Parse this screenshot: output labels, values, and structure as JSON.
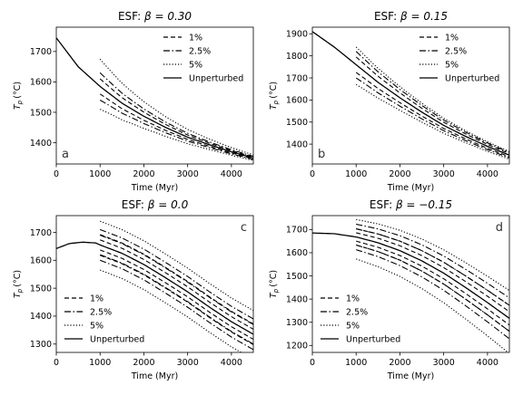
{
  "figure": {
    "legend_labels": [
      "1%",
      "2.5%",
      "5%",
      "Unperturbed"
    ],
    "xlabel": "Time (Myr)",
    "ylabel_main": "T",
    "ylabel_sub": "p",
    "ylabel_unit": "(°C)"
  },
  "chart_data": [
    {
      "type": "line",
      "panel_letter": "a",
      "title_prefix": "ESF: ",
      "title_beta": "β = 0.30",
      "xlim": [
        0,
        4500
      ],
      "ylim": [
        1330,
        1780
      ],
      "xticks": [
        0,
        1000,
        2000,
        3000,
        4000
      ],
      "yticks": [
        1400,
        1500,
        1600,
        1700
      ],
      "legend_loc": "upper-right",
      "letter_loc": "lower-left",
      "perturb_time": 1000,
      "base": {
        "x": [
          0,
          500,
          1000,
          1500,
          2000,
          2500,
          3000,
          3500,
          4000,
          4500
        ],
        "y": [
          1745,
          1650,
          1585,
          1530,
          1487,
          1450,
          1418,
          1393,
          1370,
          1350
        ]
      },
      "offsets": {
        "1%": [
          -25,
          0,
          25
        ],
        "2.5%": [
          -45,
          0,
          45
        ],
        "5%": [
          -75,
          0,
          90
        ]
      },
      "decay": 1600
    },
    {
      "type": "line",
      "panel_letter": "b",
      "title_prefix": "ESF: ",
      "title_beta": "β = 0.15",
      "xlim": [
        0,
        4500
      ],
      "ylim": [
        1310,
        1930
      ],
      "xticks": [
        0,
        1000,
        2000,
        3000,
        4000
      ],
      "yticks": [
        1400,
        1500,
        1600,
        1700,
        1800,
        1900
      ],
      "legend_loc": "upper-right",
      "letter_loc": "lower-left",
      "perturb_time": 1000,
      "base": {
        "x": [
          0,
          500,
          1000,
          1500,
          2000,
          2500,
          3000,
          3500,
          4000,
          4500
        ],
        "y": [
          1910,
          1840,
          1760,
          1680,
          1610,
          1545,
          1485,
          1435,
          1390,
          1350
        ]
      },
      "offsets": {
        "1%": [
          -35,
          0,
          35
        ],
        "2.5%": [
          -60,
          0,
          60
        ],
        "5%": [
          -90,
          0,
          80
        ]
      },
      "decay": 2200
    },
    {
      "type": "line",
      "panel_letter": "c",
      "title_prefix": "ESF: ",
      "title_beta": "β = 0.0",
      "xlim": [
        0,
        4500
      ],
      "ylim": [
        1270,
        1760
      ],
      "xticks": [
        0,
        1000,
        2000,
        3000,
        4000
      ],
      "yticks": [
        1300,
        1400,
        1500,
        1600,
        1700
      ],
      "legend_loc": "lower-left",
      "letter_loc": "upper-right",
      "perturb_time": 1000,
      "base": {
        "x": [
          0,
          300,
          600,
          900,
          1000,
          1500,
          2000,
          2500,
          3000,
          3500,
          4000,
          4500
        ],
        "y": [
          1642,
          1660,
          1665,
          1662,
          1655,
          1625,
          1585,
          1537,
          1487,
          1432,
          1380,
          1335
        ]
      },
      "offsets": {
        "1%": [
          -37,
          -18,
          18,
          37
        ],
        "2.5%": [
          -55,
          -35,
          35,
          55
        ],
        "5%": [
          -90,
          85
        ]
      },
      "decay": 0
    },
    {
      "type": "line",
      "panel_letter": "d",
      "title_prefix": "ESF: ",
      "title_beta": "β = −0.15",
      "xlim": [
        0,
        4500
      ],
      "ylim": [
        1170,
        1760
      ],
      "xticks": [
        0,
        1000,
        2000,
        3000,
        4000
      ],
      "yticks": [
        1200,
        1300,
        1400,
        1500,
        1600,
        1700
      ],
      "legend_loc": "lower-left",
      "letter_loc": "upper-right",
      "perturb_time": 1000,
      "base": {
        "x": [
          0,
          500,
          1000,
          1500,
          2000,
          2500,
          3000,
          3500,
          4000,
          4500
        ],
        "y": [
          1685,
          1682,
          1668,
          1643,
          1609,
          1565,
          1512,
          1450,
          1385,
          1317
        ]
      },
      "offsets_growth": {
        "1%": [
          -35,
          -18,
          18,
          35
        ],
        "2.5%": [
          -55,
          -35,
          35,
          55
        ],
        "5%": [
          -95,
          75
        ]
      },
      "growth": 1.6
    }
  ]
}
